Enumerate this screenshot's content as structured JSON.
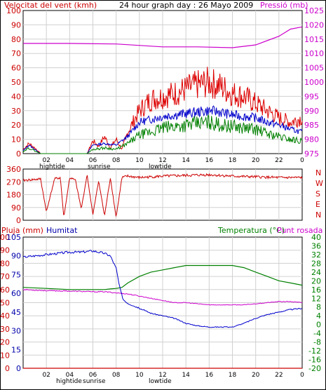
{
  "chart_data": [
    {
      "type": "line",
      "title": "24 hour graph day : 26 Mayo 2009",
      "left_title": "Velocitat del vent (kmh)",
      "right_title": "Pressió (mb)",
      "x_ticks": [
        "02",
        "04",
        "06",
        "08",
        "10",
        "12",
        "14",
        "16",
        "18",
        "20",
        "22",
        "0"
      ],
      "x_annotations": [
        "hightide",
        "sunrise",
        "lowtide"
      ],
      "y_left_ticks": [
        "0",
        "10",
        "20",
        "30",
        "40",
        "50",
        "60",
        "70",
        "80",
        "90",
        "100"
      ],
      "y_left_lim": [
        0,
        100
      ],
      "y_right_ticks": [
        "975",
        "980",
        "985",
        "990",
        "995",
        "1000",
        "1005",
        "1010",
        "1015",
        "1020",
        "1025"
      ],
      "y_right_lim": [
        975,
        1025
      ],
      "grid": true,
      "colors": {
        "gust": "#dd0000",
        "average": "#0000cc",
        "speed": "#008000",
        "pressure": "#cc00cc"
      },
      "pressure_x": [
        0,
        4,
        8,
        12,
        15,
        18,
        20,
        22,
        23,
        24
      ],
      "pressure": [
        1013.5,
        1013.5,
        1013.3,
        1012.3,
        1012.3,
        1012.0,
        1013.0,
        1016.0,
        1018.5,
        1019.3
      ],
      "gust_x": [
        0,
        0.5,
        1,
        1.5,
        5.5,
        6,
        6.5,
        7,
        7.5,
        8,
        8.5,
        9,
        10,
        11,
        12,
        13,
        14,
        15,
        16,
        17,
        18,
        19,
        20,
        21,
        22,
        23,
        24
      ],
      "gust": [
        3,
        7,
        4,
        0,
        0,
        9,
        5,
        12,
        4,
        10,
        3,
        15,
        30,
        38,
        40,
        42,
        45,
        48,
        50,
        47,
        42,
        40,
        35,
        30,
        25,
        22,
        25
      ],
      "average_x": [
        0,
        0.5,
        1,
        1.5,
        5.5,
        6,
        7,
        8,
        9,
        10,
        11,
        12,
        13,
        14,
        15,
        16,
        17,
        18,
        19,
        20,
        21,
        22,
        23,
        24
      ],
      "average": [
        2,
        6,
        3,
        0,
        0,
        6,
        7,
        6,
        12,
        22,
        24,
        26,
        27,
        28,
        29,
        30,
        29,
        27,
        26,
        25,
        22,
        20,
        17,
        15
      ],
      "speed_x": [
        0,
        0.5,
        1,
        1.5,
        5.5,
        6,
        7,
        8,
        9,
        10,
        11,
        12,
        13,
        14,
        15,
        16,
        17,
        18,
        19,
        20,
        21,
        22,
        23,
        24
      ],
      "speed": [
        1,
        4,
        2,
        0,
        0,
        3,
        4,
        3,
        7,
        13,
        15,
        18,
        19,
        20,
        21,
        22,
        20,
        19,
        18,
        17,
        14,
        12,
        10,
        9
      ]
    },
    {
      "type": "line",
      "y_left_ticks": [
        "0",
        "90",
        "180",
        "270",
        "360"
      ],
      "y_left_lim": [
        0,
        360
      ],
      "right_labels": [
        "N",
        "W",
        "S",
        "E",
        "N"
      ],
      "colors": {
        "direction": "#cc0000"
      },
      "direction_x": [
        0,
        1.5,
        2,
        2.7,
        3.2,
        3.5,
        4,
        4.5,
        5,
        5.5,
        6,
        6.5,
        7,
        7.5,
        8,
        8.5,
        9,
        10,
        12,
        14,
        16,
        18,
        20,
        22,
        24
      ],
      "direction": [
        280,
        290,
        60,
        290,
        300,
        20,
        300,
        280,
        80,
        320,
        40,
        280,
        30,
        300,
        20,
        300,
        310,
        300,
        310,
        315,
        320,
        310,
        305,
        300,
        300
      ]
    },
    {
      "type": "line",
      "left_title": "Pluja (mm)",
      "left_title2": "Humitat",
      "right_title": "Temperatura (°C)",
      "right_title2": "Punt rosada",
      "x_ticks": [
        "02",
        "04",
        "06",
        "08",
        "10",
        "12",
        "14",
        "16",
        "18",
        "20",
        "22",
        "0"
      ],
      "x_annotations": [
        "hightide",
        "sunrise",
        "lowtide"
      ],
      "y_left_ticks": [
        "0",
        "10",
        "20",
        "30",
        "40",
        "50",
        "60",
        "70",
        "80",
        "90",
        "100"
      ],
      "y_left_lim": [
        0,
        100
      ],
      "y_left_ticks2": [
        "0",
        "15",
        "30",
        "45",
        "60",
        "75",
        "90",
        "105"
      ],
      "y_left2_lim": [
        0,
        105
      ],
      "y_right_ticks": [
        "-20",
        "-16",
        "-12",
        "-8",
        "-4",
        "0",
        "4",
        "8",
        "12",
        "16",
        "20",
        "24",
        "28",
        "32",
        "36",
        "40"
      ],
      "y_right_lim": [
        -20,
        40
      ],
      "grid": true,
      "colors": {
        "rain": "#cc0000",
        "humidity": "#0000cc",
        "temperature": "#008000",
        "dewpoint": "#cc00cc"
      },
      "rain_x": [
        0,
        24
      ],
      "rain": [
        0,
        0
      ],
      "humidity_x": [
        0,
        1,
        2,
        3,
        4,
        5,
        6,
        6.5,
        7,
        7.5,
        8,
        8.3,
        8.6,
        9,
        9.5,
        10,
        11,
        12,
        13,
        14,
        15,
        16,
        17,
        18,
        19,
        20,
        21,
        22,
        23,
        24
      ],
      "humidity": [
        89,
        90,
        91,
        92,
        93,
        93,
        94,
        93,
        92,
        90,
        80,
        65,
        55,
        52,
        50,
        48,
        44,
        42,
        40,
        36,
        34,
        33,
        33,
        33,
        36,
        40,
        43,
        45,
        47,
        48
      ],
      "temperature_x": [
        0,
        2,
        4,
        6,
        7,
        7.5,
        8,
        8.5,
        9,
        10,
        11,
        12,
        13,
        14,
        15,
        16,
        17,
        18,
        19,
        20,
        21,
        22,
        23,
        24
      ],
      "temperature": [
        17,
        16.5,
        16,
        16,
        16,
        16.3,
        16.5,
        17,
        19,
        22,
        24,
        25,
        26,
        27,
        27,
        27,
        27,
        27,
        26,
        24,
        22,
        20,
        19,
        18
      ],
      "dewpoint_x": [
        0,
        2,
        4,
        6,
        7,
        8,
        9,
        10,
        11,
        12,
        13,
        14,
        15,
        16,
        17,
        18,
        19,
        20,
        21,
        22,
        23,
        24
      ],
      "dewpoint": [
        16,
        15.5,
        15.3,
        15,
        15,
        14.5,
        14,
        13,
        12,
        11,
        10,
        10,
        9.5,
        9,
        9,
        9,
        9,
        9.5,
        10,
        10.5,
        10.5,
        10
      ]
    }
  ]
}
